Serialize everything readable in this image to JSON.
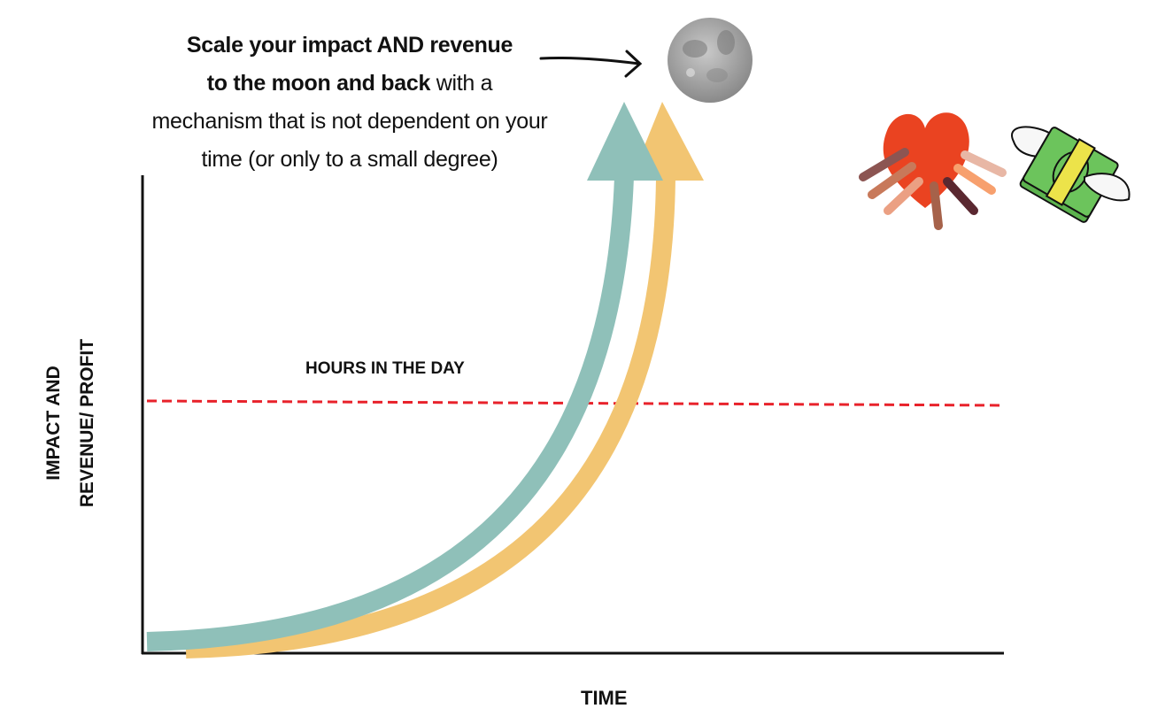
{
  "headline": {
    "bold_part_1": "Scale your impact AND revenue",
    "bold_part_2": "to the moon and back",
    "regular_part": " with a mechanism that is not dependent on your time (or only to a small degree)"
  },
  "y_axis_label": {
    "line1": "IMPACT AND",
    "line2": "REVENUE/ PROFIT"
  },
  "x_axis_label": "TIME",
  "threshold_label": "HOURS IN THE DAY",
  "colors": {
    "impact_arrow": "#8fc0b9",
    "revenue_arrow": "#f2c572",
    "threshold_line": "#e8222b",
    "heart": "#ea4321",
    "money": "#6cc45c"
  },
  "icons": [
    "moon-icon",
    "heart-hands-icon",
    "flying-money-icon",
    "pointer-arrow-icon"
  ]
}
